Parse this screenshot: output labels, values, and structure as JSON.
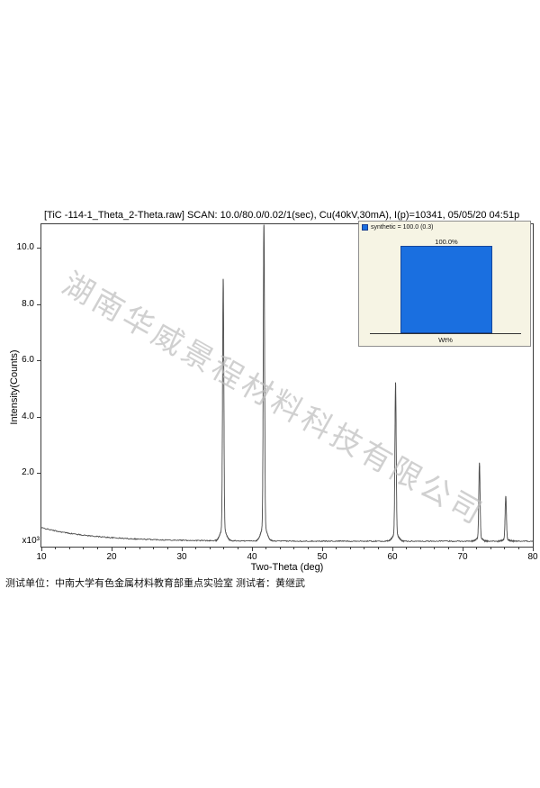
{
  "header": {
    "title": "[TiC -114-1_Theta_2-Theta.raw] SCAN: 10.0/80.0/0.02/1(sec), Cu(40kV,30mA), I(p)=10341, 05/05/20 04:51p"
  },
  "watermark_text": "湖南华威景程材料科技有限公司",
  "footer_text": "测试单位：中南大学有色金属材料教育部重点实验室 测试者：黄继武",
  "chart_data": {
    "type": "line",
    "title": "[TiC -114-1_Theta_2-Theta.raw] SCAN: 10.0/80.0/0.02/1(sec), Cu(40kV,30mA), I(p)=10341, 05/05/20 04:51p",
    "xlabel": "Two-Theta (deg)",
    "ylabel": "Intensity(Counts)",
    "y_multiplier": "x10³",
    "xlim": [
      10,
      80
    ],
    "x_major_ticks": [
      10,
      20,
      30,
      40,
      50,
      60,
      70,
      80
    ],
    "x_minor_step": 2,
    "y_ticks": [
      2.0,
      4.0,
      6.0,
      8.0,
      10.0
    ],
    "y_tick_labels": [
      "2.0",
      "4.0",
      "6.0",
      "8.0",
      "10.0"
    ],
    "ylim_display": [
      -0.65,
      10.8
    ],
    "grid": false,
    "line_color": "#4a4a4a",
    "peak_intensity_max_counts": 10341,
    "peaks": [
      {
        "two_theta": 35.9,
        "intensity_kcounts": 8.46
      },
      {
        "two_theta": 41.7,
        "intensity_kcounts": 10.42
      },
      {
        "two_theta": 60.45,
        "intensity_kcounts": 4.94
      },
      {
        "two_theta": 72.4,
        "intensity_kcounts": 2.22
      },
      {
        "two_theta": 76.15,
        "intensity_kcounts": 1.1
      }
    ],
    "background_display": {
      "start_k": 0.05,
      "floor_k": -0.43,
      "decay_deg": 7.5,
      "noise_k": 0.018
    },
    "inset": {
      "legend_label": "synthetic = 100.0 (0.3)",
      "legend_color": "#1a6fe0",
      "bar_value_pct": 100.0,
      "bar_label": "100.0%",
      "bar_color": "#1a6fe0",
      "axis_label": "Wt%",
      "bg_color": "#f6f4e4"
    }
  }
}
